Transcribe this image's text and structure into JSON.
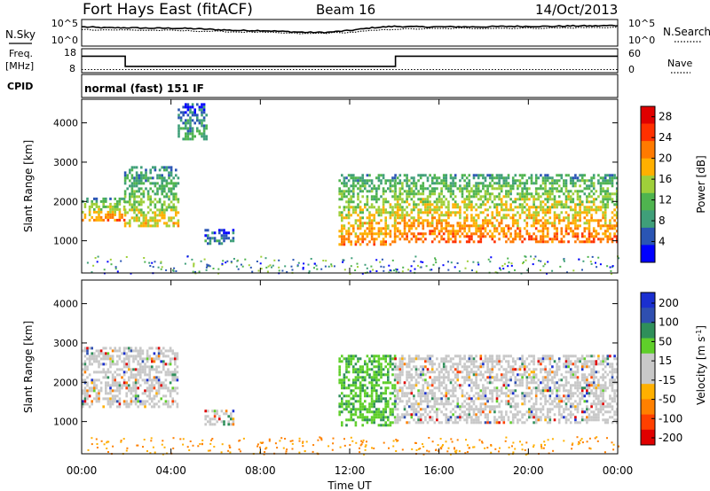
{
  "header": {
    "station": "Fort Hays East (fitACF)",
    "beam": "Beam 16",
    "date": "14/Oct/2013"
  },
  "strip_labels": {
    "nsky": "N.Sky",
    "nsearch": "N.Search",
    "freq_line1": "Freq.",
    "freq_line2": "[MHz]",
    "nave": "Nave",
    "cpid": "CPID",
    "cpid_value": "normal (fast) 151 IF"
  },
  "strip_ticks": {
    "noise_left": [
      "10^5",
      "10^0"
    ],
    "noise_right": [
      "10^5",
      "10^0"
    ],
    "freq_left": [
      "18",
      "8"
    ],
    "nave_right": [
      "60",
      "0"
    ]
  },
  "colors": {
    "power": [
      "#0000ff",
      "#2a55b4",
      "#3f9f79",
      "#4fb44f",
      "#9fcf3a",
      "#ffb000",
      "#ff7a00",
      "#ff3000",
      "#e00000"
    ],
    "velocity": [
      "#e00000",
      "#ff4000",
      "#ff8000",
      "#ffb000",
      "#c8c8c8",
      "#c8c8c8",
      "#5fcf2a",
      "#2f8f5a",
      "#2f4fb0",
      "#1a2fd0"
    ],
    "velocity_grey": "#c8c8c8"
  },
  "chart_data": [
    {
      "type": "line",
      "name": "noise-strip",
      "x_units": "hours UT",
      "xlim": [
        0,
        24
      ],
      "ylim": [
        0,
        5
      ],
      "y_scale": "log10",
      "series": [
        {
          "name": "N.Sky",
          "style": "solid",
          "x": [
            0,
            1,
            2,
            3,
            4,
            5,
            6,
            7,
            8,
            9,
            10,
            11,
            12,
            13,
            14,
            15,
            16,
            17,
            18,
            19,
            20,
            21,
            22,
            23,
            24
          ],
          "values": [
            3.8,
            3.6,
            3.6,
            3.5,
            3.5,
            3.4,
            3.2,
            3.0,
            3.0,
            2.8,
            2.6,
            2.6,
            3.0,
            3.6,
            3.9,
            3.8,
            3.8,
            3.8,
            3.8,
            3.9,
            3.9,
            3.9,
            4.0,
            4.0,
            4.1
          ]
        },
        {
          "name": "N.Search",
          "style": "dotted",
          "x": [
            0,
            2,
            4,
            6,
            8,
            10,
            12,
            14,
            16,
            18,
            20,
            22,
            24
          ],
          "values": [
            3.2,
            3.1,
            3.0,
            2.8,
            2.6,
            2.3,
            2.6,
            3.3,
            3.4,
            3.5,
            3.5,
            3.6,
            3.7
          ]
        }
      ]
    },
    {
      "type": "line",
      "name": "freq-nave-strip",
      "x_units": "hours UT",
      "xlim": [
        0,
        24
      ],
      "series": [
        {
          "name": "Freq.",
          "units": "MHz",
          "ylim": [
            8,
            18
          ],
          "style": "solid",
          "x": [
            0,
            1.95,
            1.95,
            14.05,
            14.05,
            24
          ],
          "values": [
            15.2,
            15.2,
            10.2,
            10.2,
            15.2,
            15.2
          ]
        },
        {
          "name": "Nave",
          "ylim": [
            0,
            60
          ],
          "style": "dotted",
          "x": [
            0,
            24
          ],
          "values": [
            4,
            4
          ]
        }
      ]
    },
    {
      "type": "heatmap",
      "name": "power",
      "xlabel": "Time UT",
      "ylabel": "Slant Range [km]",
      "xlim": [
        0,
        24
      ],
      "ylim": [
        180,
        4600
      ],
      "x_ticks": [
        "00:00",
        "04:00",
        "08:00",
        "12:00",
        "16:00",
        "20:00",
        "00:00"
      ],
      "y_ticks": [
        1000,
        2000,
        3000,
        4000
      ],
      "colorbar": {
        "label": "Power [dB]",
        "range": [
          0,
          30
        ],
        "ticks": [
          4,
          8,
          12,
          16,
          20,
          24,
          28
        ]
      },
      "echo_regions": [
        {
          "t0": 0.0,
          "t1": 1.9,
          "r0": 1500,
          "r1": 2100,
          "peak_db": 26
        },
        {
          "t0": 1.9,
          "t1": 4.3,
          "r0": 1400,
          "r1": 2900,
          "peak_db": 20
        },
        {
          "t0": 4.3,
          "t1": 5.6,
          "r0": 3600,
          "r1": 4500,
          "peak_db": 12
        },
        {
          "t0": 5.5,
          "t1": 6.8,
          "r0": 900,
          "r1": 1300,
          "peak_db": 10
        },
        {
          "t0": 11.5,
          "t1": 14.0,
          "r0": 900,
          "r1": 2700,
          "peak_db": 24
        },
        {
          "t0": 14.0,
          "t1": 24.0,
          "r0": 1000,
          "r1": 2700,
          "peak_db": 26
        }
      ]
    },
    {
      "type": "heatmap",
      "name": "velocity",
      "xlabel": "Time UT",
      "ylabel": "Slant Range [km]",
      "xlim": [
        0,
        24
      ],
      "ylim": [
        180,
        4600
      ],
      "x_ticks": [
        "00:00",
        "04:00",
        "08:00",
        "12:00",
        "16:00",
        "20:00",
        "00:00"
      ],
      "y_ticks": [
        1000,
        2000,
        3000,
        4000
      ],
      "colorbar": {
        "label": "Velocity [m s^-1]",
        "range": [
          -250,
          250
        ],
        "ticks": [
          "200",
          "100",
          "50",
          "15",
          "-15",
          "-50",
          "-100",
          "-200"
        ]
      },
      "echo_regions": [
        {
          "t0": 0.0,
          "t1": 4.3,
          "r0": 1400,
          "r1": 2900,
          "class": "ground-scatter"
        },
        {
          "t0": 5.5,
          "t1": 6.8,
          "r0": 900,
          "r1": 1300,
          "class": "ground-scatter"
        },
        {
          "t0": 11.5,
          "t1": 14.0,
          "r0": 900,
          "r1": 2700,
          "class": "positive-velocity",
          "velocity_ms": 60
        },
        {
          "t0": 14.0,
          "t1": 24.0,
          "r0": 1000,
          "r1": 2700,
          "class": "ground-scatter"
        }
      ]
    }
  ]
}
